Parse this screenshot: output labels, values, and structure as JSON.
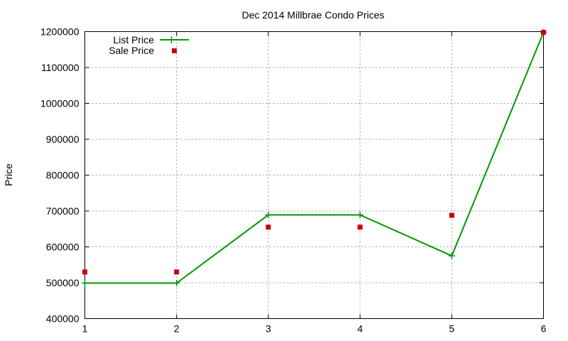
{
  "chart_data": {
    "type": "line",
    "title": "Dec 2014 Millbrae Condo Prices",
    "xlabel": "",
    "ylabel": "Price",
    "x": [
      1,
      2,
      3,
      4,
      5,
      6
    ],
    "xlim": [
      1,
      6
    ],
    "ylim": [
      400000,
      1200000
    ],
    "x_ticks": [
      1,
      2,
      3,
      4,
      5,
      6
    ],
    "y_ticks": [
      400000,
      500000,
      600000,
      700000,
      800000,
      900000,
      1000000,
      1100000,
      1200000
    ],
    "grid": true,
    "legend_position": "top-left",
    "series": [
      {
        "name": "List Price",
        "kind": "line-with-plus-markers",
        "color": "#009900",
        "values": [
          499000,
          499000,
          689000,
          689000,
          575000,
          1198000
        ]
      },
      {
        "name": "Sale Price",
        "kind": "square-points",
        "color": "#cc0000",
        "values": [
          530000,
          530000,
          655000,
          655000,
          688000,
          1198000
        ]
      }
    ]
  }
}
